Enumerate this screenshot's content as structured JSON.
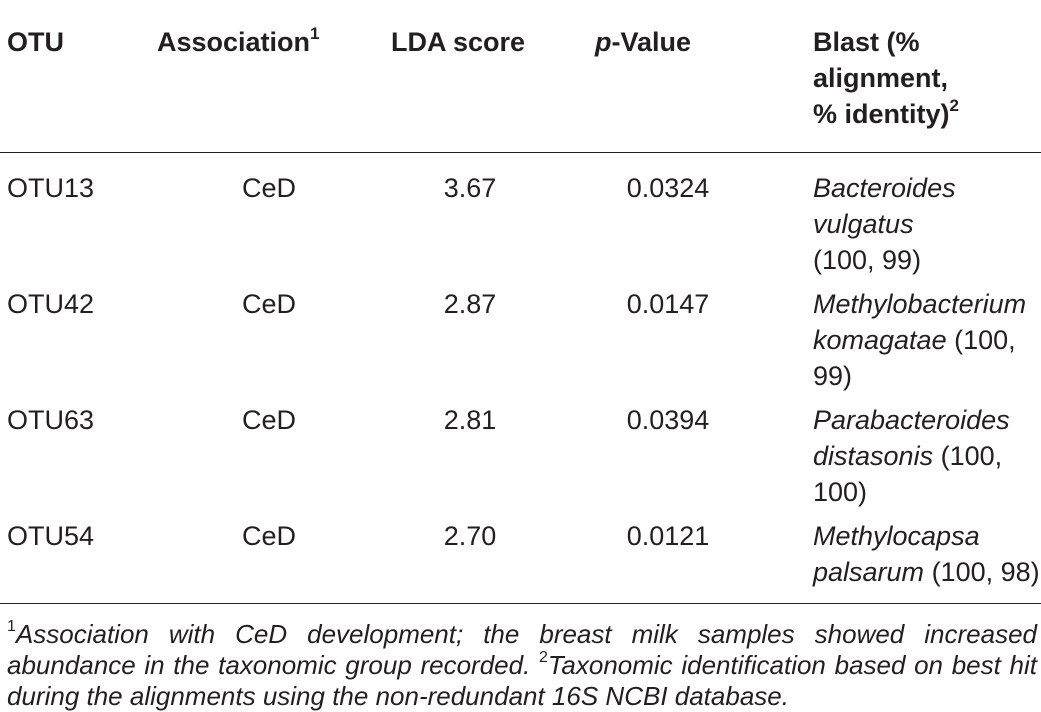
{
  "table": {
    "headers": {
      "otu": "OTU",
      "association": "Association",
      "association_sup": "1",
      "lda": "LDA score",
      "p_italic": "p",
      "p_rest": "-Value",
      "blast_line1": "Blast (% alignment,",
      "blast_line2": "% identity)",
      "blast_sup": "2"
    },
    "rows": [
      {
        "otu": "OTU13",
        "association": "CeD",
        "lda": "3.67",
        "p": "0.0324",
        "species": "Bacteroides vulgatus",
        "species_a": "Bacteroides vulgatus",
        "species_b": "",
        "values": "(100, 99)"
      },
      {
        "otu": "OTU42",
        "association": "CeD",
        "lda": "2.87",
        "p": "0.0147",
        "species_a": "Methylobacterium",
        "species_b": "komagatae",
        "values": "(100, 99)"
      },
      {
        "otu": "OTU63",
        "association": "CeD",
        "lda": "2.81",
        "p": "0.0394",
        "species_a": "Parabacteroides",
        "species_b": "distasonis",
        "values": "(100, 100)"
      },
      {
        "otu": "OTU54",
        "association": "CeD",
        "lda": "2.70",
        "p": "0.0121",
        "species_a": "Methylocapsa",
        "species_b": "palsarum",
        "values": "(100, 98)"
      }
    ]
  },
  "footnotes": {
    "sup1": "1",
    "note1": "Association with CeD development; the breast milk samples showed increased abundance in the taxonomic group recorded.",
    "sup2": "2",
    "note2": "Taxonomic identification based on best hit during the alignments using the non-redundant 16S NCBI database."
  }
}
